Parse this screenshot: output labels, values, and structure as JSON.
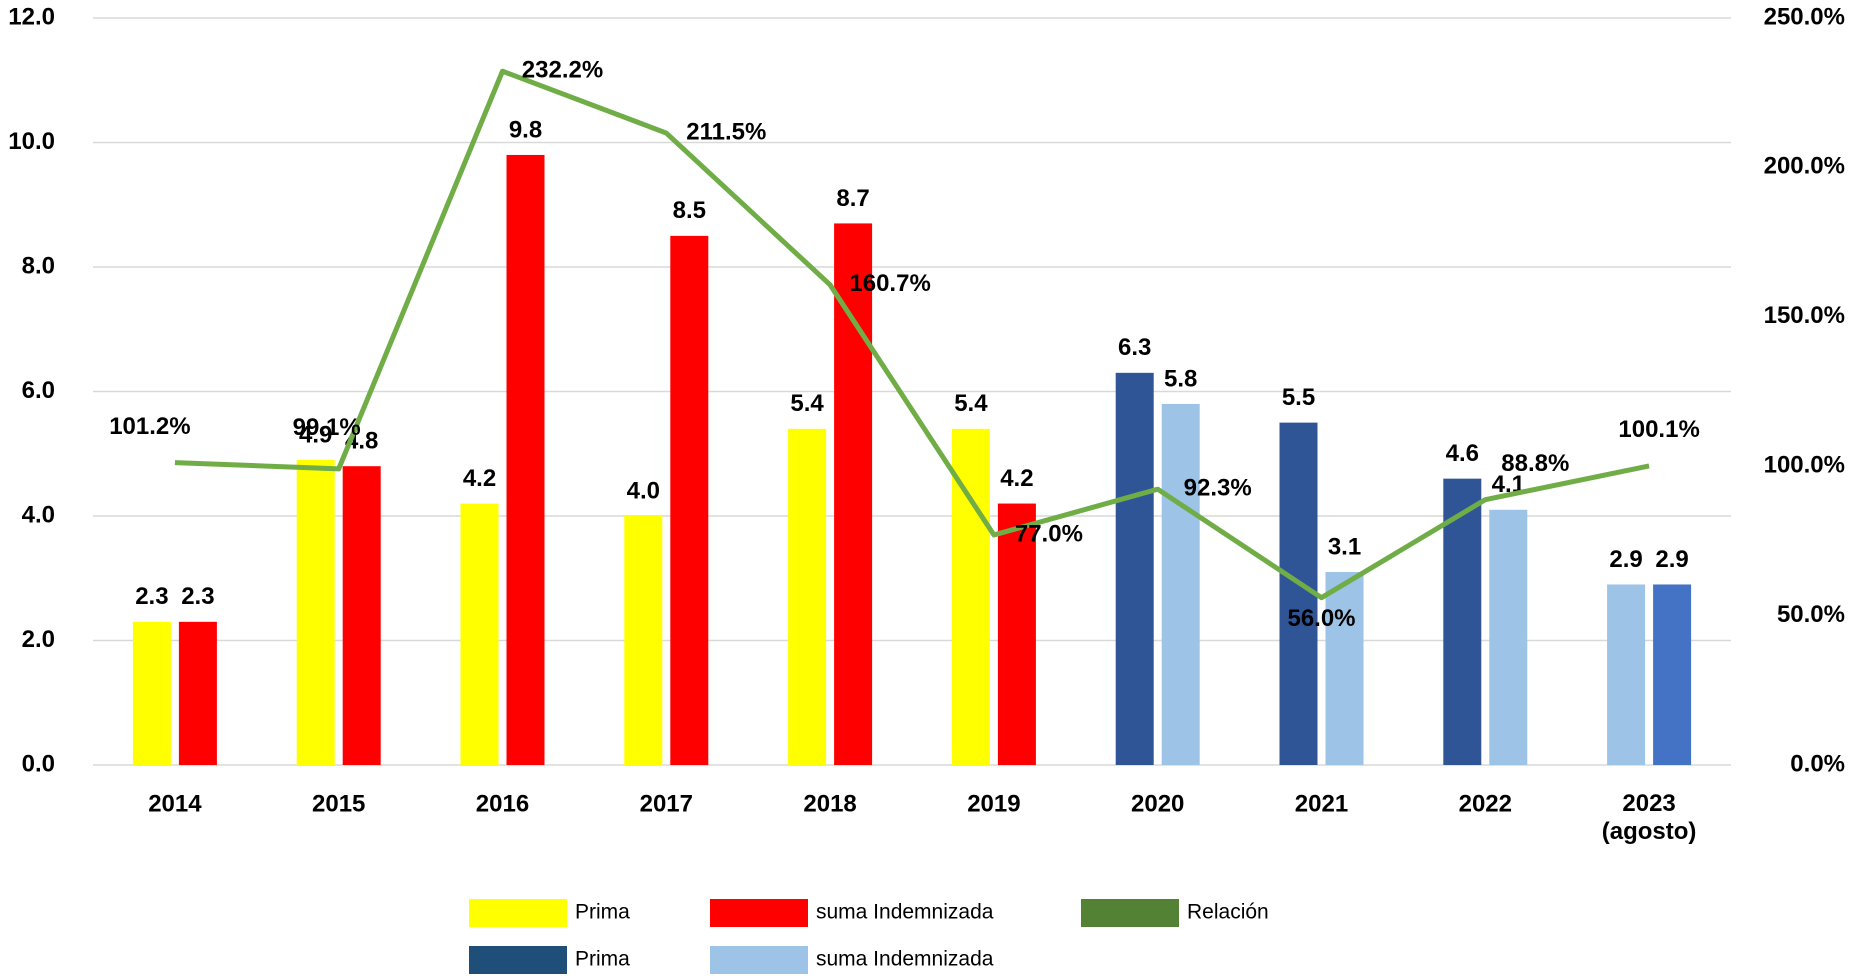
{
  "chart_data": {
    "type": "bar",
    "categories": [
      "2014",
      "2015",
      "2016",
      "2017",
      "2018",
      "2019",
      "2020",
      "2021",
      "2022",
      "2023\n(agosto)"
    ],
    "series": [
      {
        "name": "Prima",
        "color": "#ffff00",
        "values": [
          2.3,
          4.9,
          4.2,
          4.0,
          5.4,
          5.4,
          null,
          null,
          null,
          null
        ],
        "value_labels": [
          "2.3",
          "4.9",
          "4.2",
          "4.0",
          "5.4",
          "5.4",
          null,
          null,
          null,
          null
        ]
      },
      {
        "name": "suma Indemnizada",
        "color": "#ff0000",
        "values": [
          2.3,
          4.8,
          9.8,
          8.5,
          8.7,
          4.2,
          null,
          null,
          null,
          null
        ],
        "value_labels": [
          "2.3",
          "4.8",
          "9.8",
          "8.5",
          "8.7",
          "4.2",
          null,
          null,
          null,
          null
        ]
      },
      {
        "name": "Relación",
        "type": "line",
        "axis": "y2",
        "color": "#70ad47",
        "values": [
          101.2,
          99.1,
          232.2,
          211.5,
          160.7,
          77.0,
          92.3,
          56.0,
          88.8,
          100.1
        ],
        "value_labels": [
          "101.2%",
          "99.1%",
          "232.2%",
          "211.5%",
          "160.7%",
          "77.0%",
          "92.3%",
          "56.0%",
          "88.8%",
          "100.1%"
        ]
      },
      {
        "name": "Prima",
        "color": "#2f5597",
        "legend_color": "#1f4e79",
        "values": [
          null,
          null,
          null,
          null,
          null,
          null,
          6.3,
          5.5,
          4.6,
          2.9
        ],
        "point_colors": [
          null,
          null,
          null,
          null,
          null,
          null,
          "#2f5597",
          "#2f5597",
          "#2f5597",
          "#9dc3e6"
        ],
        "value_labels": [
          null,
          null,
          null,
          null,
          null,
          null,
          "6.3",
          "5.5",
          "4.6",
          "2.9"
        ]
      },
      {
        "name": "suma Indemnizada",
        "color": "#9dc3e6",
        "values": [
          null,
          null,
          null,
          null,
          null,
          null,
          5.8,
          3.1,
          4.1,
          2.9
        ],
        "point_colors": [
          null,
          null,
          null,
          null,
          null,
          null,
          "#9dc3e6",
          "#9dc3e6",
          "#9dc3e6",
          "#4472c4"
        ],
        "value_labels": [
          null,
          null,
          null,
          null,
          null,
          null,
          "5.8",
          "3.1",
          "4.1",
          "2.9"
        ]
      }
    ],
    "ylim": [
      0,
      12
    ],
    "yticks": [
      {
        "value": 0,
        "label": "0.0"
      },
      {
        "value": 2,
        "label": "2.0"
      },
      {
        "value": 4,
        "label": "4.0"
      },
      {
        "value": 6,
        "label": "6.0"
      },
      {
        "value": 8,
        "label": "8.0"
      },
      {
        "value": 10,
        "label": "10.0"
      },
      {
        "value": 12,
        "label": "12.0"
      }
    ],
    "y2lim": [
      0,
      250
    ],
    "y2ticks": [
      {
        "value": 0,
        "label": "0.0%"
      },
      {
        "value": 50,
        "label": "50.0%"
      },
      {
        "value": 100,
        "label": "100.0%"
      },
      {
        "value": 150,
        "label": "150.0%"
      },
      {
        "value": 200,
        "label": "200.0%"
      },
      {
        "value": 250,
        "label": "250.0%"
      }
    ],
    "grid": true
  }
}
